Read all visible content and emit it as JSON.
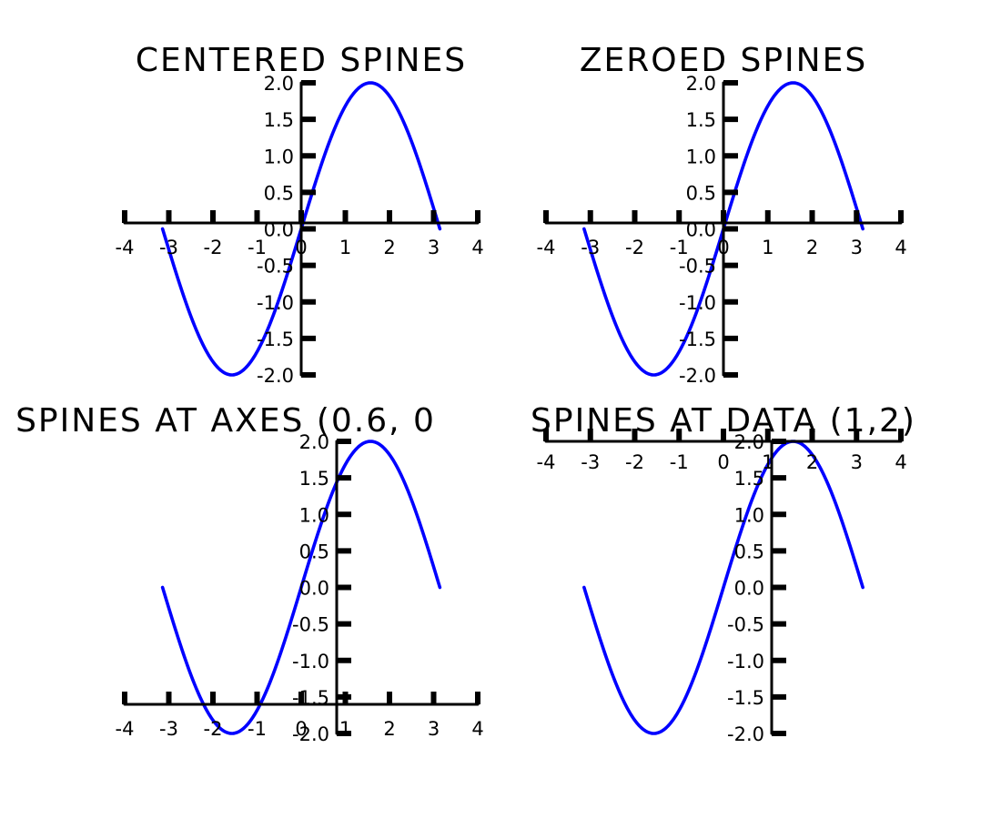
{
  "chart_data": [
    {
      "type": "line",
      "title": "CENTERED SPINES",
      "spine_position": "center",
      "series": [
        {
          "color": "#0000ff",
          "function": "2*sin(x)",
          "x_range": [
            -3.14159,
            3.14159
          ]
        }
      ],
      "xlim": [
        -4,
        4
      ],
      "ylim": [
        -2,
        2
      ],
      "xticks": [
        -4,
        -3,
        -2,
        -1,
        0,
        1,
        2,
        3,
        4
      ],
      "xtick_labels": [
        "-4",
        "-3",
        "-2",
        "-1",
        "0",
        "1",
        "2",
        "3",
        "4"
      ],
      "yticks": [
        -2,
        -1.5,
        -1,
        -0.5,
        0,
        0.5,
        1,
        1.5,
        2
      ],
      "ytick_labels": [
        "-2.0",
        "-1.5",
        "-1.0",
        "-0.5",
        "0.0",
        "0.5",
        "1.0",
        "1.5",
        "2.0"
      ]
    },
    {
      "type": "line",
      "title": "ZEROED SPINES",
      "spine_position": "zero",
      "series": [
        {
          "color": "#0000ff",
          "function": "2*sin(x)",
          "x_range": [
            -3.14159,
            3.14159
          ]
        }
      ],
      "xlim": [
        -4,
        4
      ],
      "ylim": [
        -2,
        2
      ],
      "xticks": [
        -4,
        -3,
        -2,
        -1,
        0,
        1,
        2,
        3,
        4
      ],
      "xtick_labels": [
        "-4",
        "-3",
        "-2",
        "-1",
        "0",
        "1",
        "2",
        "3",
        "4"
      ],
      "yticks": [
        -2,
        -1.5,
        -1,
        -0.5,
        0,
        0.5,
        1,
        1.5,
        2
      ],
      "ytick_labels": [
        "-2.0",
        "-1.5",
        "-1.0",
        "-0.5",
        "0.0",
        "0.5",
        "1.0",
        "1.5",
        "2.0"
      ]
    },
    {
      "type": "line",
      "title": "SPINES AT AXES (0.6, 0",
      "spine_position": "axes (0.6, 0.1)",
      "series": [
        {
          "color": "#0000ff",
          "function": "2*sin(x)",
          "x_range": [
            -3.14159,
            3.14159
          ]
        }
      ],
      "xlim": [
        -4,
        4
      ],
      "ylim": [
        -2,
        2
      ],
      "xticks": [
        -4,
        -3,
        -2,
        -1,
        0,
        1,
        2,
        3,
        4
      ],
      "xtick_labels": [
        "-4",
        "-3",
        "-2",
        "-1",
        "0",
        "1",
        "2",
        "3",
        "4"
      ],
      "yticks": [
        -2,
        -1.5,
        -1,
        -0.5,
        0,
        0.5,
        1,
        1.5,
        2
      ],
      "ytick_labels": [
        "-2.0",
        "-1.5",
        "-1.0",
        "-0.5",
        "0.0",
        "0.5",
        "1.0",
        "1.5",
        "2.0"
      ]
    },
    {
      "type": "line",
      "title": "SPINES AT DATA (1,2)",
      "spine_position": "data (1, 2)",
      "series": [
        {
          "color": "#0000ff",
          "function": "2*sin(x)",
          "x_range": [
            -3.14159,
            3.14159
          ]
        }
      ],
      "xlim": [
        -4,
        4
      ],
      "ylim": [
        -2,
        2
      ],
      "xticks": [
        -4,
        -3,
        -2,
        -1,
        0,
        1,
        2,
        3,
        4
      ],
      "xtick_labels": [
        "-4",
        "-3",
        "-2",
        "-1",
        "0",
        "1",
        "2",
        "3",
        "4"
      ],
      "yticks": [
        -2,
        -1.5,
        -1,
        -0.5,
        0,
        0.5,
        1,
        1.5,
        2
      ],
      "ytick_labels": [
        "-2.0",
        "-1.5",
        "-1.0",
        "-0.5",
        "0.0",
        "0.5",
        "1.0",
        "1.5",
        "2.0"
      ]
    }
  ]
}
